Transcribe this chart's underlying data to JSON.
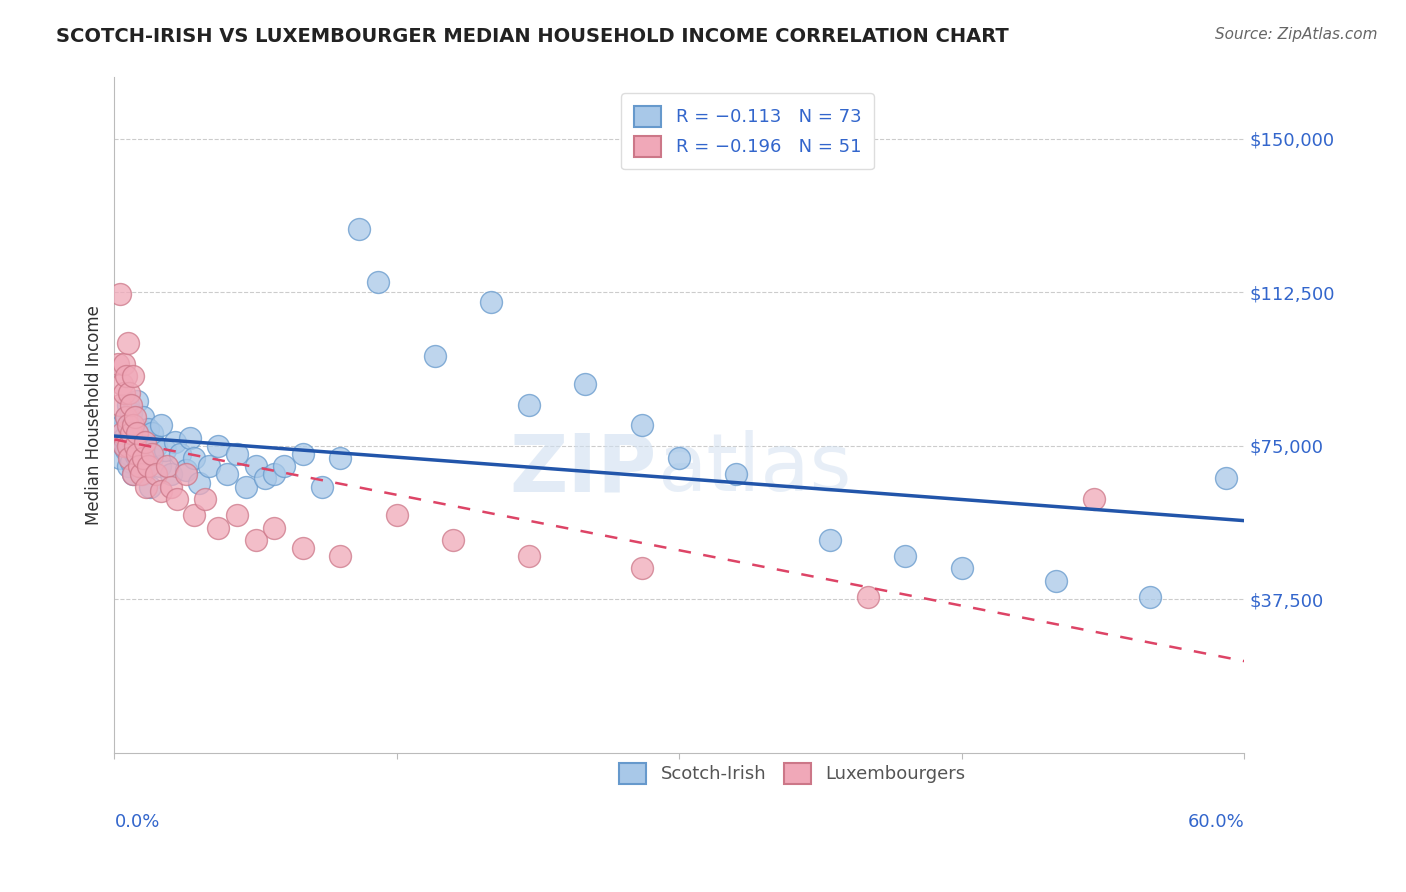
{
  "title": "SCOTCH-IRISH VS LUXEMBOURGER MEDIAN HOUSEHOLD INCOME CORRELATION CHART",
  "source": "Source: ZipAtlas.com",
  "ylabel": "Median Household Income",
  "ylim": [
    0,
    165000
  ],
  "xlim": [
    0.0,
    0.6
  ],
  "background_color": "#ffffff",
  "blue_color": "#a8c8e8",
  "pink_color": "#f0a8b8",
  "blue_line_color": "#2255aa",
  "pink_line_color": "#dd4466",
  "blue_edge_color": "#6699cc",
  "pink_edge_color": "#cc7788",
  "si_x": [
    0.002,
    0.003,
    0.004,
    0.005,
    0.005,
    0.006,
    0.006,
    0.007,
    0.007,
    0.008,
    0.008,
    0.008,
    0.009,
    0.009,
    0.01,
    0.01,
    0.01,
    0.011,
    0.011,
    0.012,
    0.012,
    0.013,
    0.013,
    0.014,
    0.014,
    0.015,
    0.015,
    0.016,
    0.016,
    0.017,
    0.018,
    0.018,
    0.019,
    0.02,
    0.02,
    0.022,
    0.024,
    0.025,
    0.027,
    0.03,
    0.032,
    0.035,
    0.038,
    0.04,
    0.042,
    0.045,
    0.05,
    0.055,
    0.06,
    0.065,
    0.07,
    0.075,
    0.08,
    0.085,
    0.09,
    0.1,
    0.11,
    0.12,
    0.13,
    0.14,
    0.17,
    0.2,
    0.22,
    0.25,
    0.28,
    0.3,
    0.33,
    0.38,
    0.42,
    0.45,
    0.5,
    0.55,
    0.59
  ],
  "si_y": [
    78000,
    72000,
    80000,
    75000,
    77000,
    82000,
    74000,
    85000,
    70000,
    79000,
    73000,
    76000,
    71000,
    83000,
    80000,
    75000,
    68000,
    77000,
    73000,
    86000,
    72000,
    79000,
    74000,
    70000,
    78000,
    82000,
    68000,
    75000,
    71000,
    76000,
    73000,
    79000,
    65000,
    72000,
    78000,
    75000,
    70000,
    80000,
    74000,
    68000,
    76000,
    73000,
    69000,
    77000,
    72000,
    66000,
    70000,
    75000,
    68000,
    73000,
    65000,
    70000,
    67000,
    68000,
    70000,
    73000,
    65000,
    72000,
    128000,
    115000,
    97000,
    110000,
    85000,
    90000,
    80000,
    72000,
    68000,
    52000,
    48000,
    45000,
    42000,
    38000,
    67000
  ],
  "lux_x": [
    0.002,
    0.003,
    0.003,
    0.004,
    0.004,
    0.005,
    0.005,
    0.005,
    0.006,
    0.006,
    0.007,
    0.007,
    0.007,
    0.008,
    0.008,
    0.009,
    0.009,
    0.01,
    0.01,
    0.01,
    0.011,
    0.011,
    0.012,
    0.012,
    0.013,
    0.014,
    0.015,
    0.016,
    0.017,
    0.018,
    0.02,
    0.022,
    0.025,
    0.028,
    0.03,
    0.033,
    0.038,
    0.042,
    0.048,
    0.055,
    0.065,
    0.075,
    0.085,
    0.1,
    0.12,
    0.15,
    0.18,
    0.22,
    0.28,
    0.4,
    0.52
  ],
  "lux_y": [
    95000,
    112000,
    85000,
    90000,
    78000,
    95000,
    88000,
    75000,
    82000,
    92000,
    80000,
    75000,
    100000,
    88000,
    72000,
    85000,
    78000,
    80000,
    92000,
    68000,
    75000,
    82000,
    73000,
    78000,
    70000,
    68000,
    72000,
    76000,
    65000,
    70000,
    73000,
    68000,
    64000,
    70000,
    65000,
    62000,
    68000,
    58000,
    62000,
    55000,
    58000,
    52000,
    55000,
    50000,
    48000,
    58000,
    52000,
    48000,
    45000,
    38000,
    62000
  ]
}
